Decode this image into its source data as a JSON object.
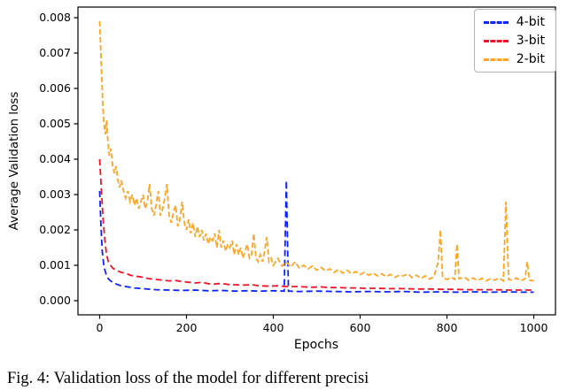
{
  "figure": {
    "caption": "Fig. 4: Validation loss of the model for different precisi"
  },
  "chart_data": {
    "type": "line",
    "title": "",
    "xlabel": "Epochs",
    "ylabel": "Average Validation loss",
    "xlim": [
      -50,
      1050
    ],
    "ylim": [
      -0.0004,
      0.0083
    ],
    "x_ticks": [
      0,
      200,
      400,
      600,
      800,
      1000
    ],
    "y_ticks": [
      0.0,
      0.001,
      0.002,
      0.003,
      0.004,
      0.005,
      0.006,
      0.007,
      0.008
    ],
    "grid": false,
    "legend_position": "upper right",
    "series": [
      {
        "name": "4-bit",
        "color": "#0b24fb",
        "dash": [
          7,
          4
        ],
        "points": [
          [
            0,
            0.0031
          ],
          [
            3,
            0.0021
          ],
          [
            6,
            0.0014
          ],
          [
            10,
            0.00095
          ],
          [
            15,
            0.00075
          ],
          [
            20,
            0.00062
          ],
          [
            25,
            0.00056
          ],
          [
            30,
            0.00052
          ],
          [
            40,
            0.00046
          ],
          [
            50,
            0.00042
          ],
          [
            60,
            0.0004
          ],
          [
            80,
            0.00036
          ],
          [
            100,
            0.00034
          ],
          [
            130,
            0.00031
          ],
          [
            160,
            0.0003
          ],
          [
            190,
            0.00029
          ],
          [
            220,
            0.0003
          ],
          [
            250,
            0.00028
          ],
          [
            280,
            0.00029
          ],
          [
            310,
            0.00027
          ],
          [
            340,
            0.00028
          ],
          [
            370,
            0.00027
          ],
          [
            400,
            0.00028
          ],
          [
            425,
            0.00027
          ],
          [
            430,
            0.0034
          ],
          [
            435,
            0.00027
          ],
          [
            460,
            0.00026
          ],
          [
            500,
            0.00027
          ],
          [
            540,
            0.00026
          ],
          [
            580,
            0.00025
          ],
          [
            620,
            0.00026
          ],
          [
            660,
            0.00025
          ],
          [
            700,
            0.00026
          ],
          [
            740,
            0.00024
          ],
          [
            780,
            0.00025
          ],
          [
            820,
            0.00024
          ],
          [
            860,
            0.00025
          ],
          [
            900,
            0.00024
          ],
          [
            940,
            0.00025
          ],
          [
            970,
            0.00024
          ],
          [
            1000,
            0.00024
          ]
        ]
      },
      {
        "name": "3-bit",
        "color": "#f0142a",
        "dash": [
          7,
          4
        ],
        "points": [
          [
            0,
            0.004
          ],
          [
            4,
            0.0031
          ],
          [
            8,
            0.0023
          ],
          [
            12,
            0.0017
          ],
          [
            16,
            0.0013
          ],
          [
            20,
            0.0011
          ],
          [
            25,
            0.001
          ],
          [
            30,
            0.00092
          ],
          [
            40,
            0.00085
          ],
          [
            50,
            0.0008
          ],
          [
            60,
            0.00078
          ],
          [
            70,
            0.00072
          ],
          [
            80,
            0.0007
          ],
          [
            90,
            0.00068
          ],
          [
            100,
            0.00066
          ],
          [
            115,
            0.00062
          ],
          [
            130,
            0.0006
          ],
          [
            145,
            0.00058
          ],
          [
            160,
            0.00056
          ],
          [
            175,
            0.00057
          ],
          [
            190,
            0.00054
          ],
          [
            205,
            0.00052
          ],
          [
            220,
            0.0005
          ],
          [
            235,
            0.00052
          ],
          [
            250,
            0.00048
          ],
          [
            265,
            0.00047
          ],
          [
            280,
            0.00049
          ],
          [
            295,
            0.00046
          ],
          [
            310,
            0.00045
          ],
          [
            330,
            0.00044
          ],
          [
            350,
            0.00045
          ],
          [
            370,
            0.00042
          ],
          [
            390,
            0.00041
          ],
          [
            410,
            0.00042
          ],
          [
            430,
            0.0004
          ],
          [
            450,
            0.0004
          ],
          [
            470,
            0.00039
          ],
          [
            490,
            0.00038
          ],
          [
            510,
            0.00039
          ],
          [
            530,
            0.00037
          ],
          [
            550,
            0.00037
          ],
          [
            570,
            0.00036
          ],
          [
            590,
            0.00036
          ],
          [
            610,
            0.00035
          ],
          [
            640,
            0.00035
          ],
          [
            670,
            0.00034
          ],
          [
            700,
            0.00034
          ],
          [
            730,
            0.00033
          ],
          [
            760,
            0.00033
          ],
          [
            790,
            0.00032
          ],
          [
            820,
            0.00032
          ],
          [
            850,
            0.00031
          ],
          [
            880,
            0.00031
          ],
          [
            910,
            0.00031
          ],
          [
            940,
            0.0003
          ],
          [
            970,
            0.0003
          ],
          [
            1000,
            0.0003
          ]
        ]
      },
      {
        "name": "2-bit",
        "color": "#ffa424",
        "dash": [
          6,
          3
        ],
        "points": [
          [
            0,
            0.0079
          ],
          [
            4,
            0.0066
          ],
          [
            7,
            0.0056
          ],
          [
            10,
            0.005
          ],
          [
            13,
            0.0047
          ],
          [
            16,
            0.0051
          ],
          [
            19,
            0.0045
          ],
          [
            22,
            0.0041
          ],
          [
            26,
            0.0043
          ],
          [
            30,
            0.0038
          ],
          [
            34,
            0.0036
          ],
          [
            38,
            0.0038
          ],
          [
            42,
            0.0034
          ],
          [
            46,
            0.0032
          ],
          [
            50,
            0.0034
          ],
          [
            55,
            0.0031
          ],
          [
            60,
            0.0029
          ],
          [
            65,
            0.0031
          ],
          [
            70,
            0.0028
          ],
          [
            75,
            0.003
          ],
          [
            80,
            0.0027
          ],
          [
            85,
            0.0029
          ],
          [
            90,
            0.0026
          ],
          [
            95,
            0.0028
          ],
          [
            100,
            0.003
          ],
          [
            105,
            0.0026
          ],
          [
            110,
            0.0028
          ],
          [
            115,
            0.0033
          ],
          [
            120,
            0.0026
          ],
          [
            125,
            0.0024
          ],
          [
            130,
            0.0027
          ],
          [
            135,
            0.0031
          ],
          [
            140,
            0.0024
          ],
          [
            145,
            0.0026
          ],
          [
            150,
            0.0029
          ],
          [
            155,
            0.0033
          ],
          [
            160,
            0.0024
          ],
          [
            165,
            0.0022
          ],
          [
            170,
            0.0025
          ],
          [
            175,
            0.0027
          ],
          [
            180,
            0.0021
          ],
          [
            185,
            0.0023
          ],
          [
            190,
            0.0028
          ],
          [
            195,
            0.0022
          ],
          [
            200,
            0.002
          ],
          [
            205,
            0.0023
          ],
          [
            210,
            0.0019
          ],
          [
            215,
            0.0022
          ],
          [
            220,
            0.0018
          ],
          [
            225,
            0.0021
          ],
          [
            230,
            0.0018
          ],
          [
            235,
            0.002
          ],
          [
            240,
            0.0017
          ],
          [
            245,
            0.0019
          ],
          [
            250,
            0.0016
          ],
          [
            255,
            0.0018
          ],
          [
            260,
            0.0017
          ],
          [
            265,
            0.0019
          ],
          [
            270,
            0.0015
          ],
          [
            275,
            0.002
          ],
          [
            280,
            0.0015
          ],
          [
            285,
            0.0017
          ],
          [
            290,
            0.0014
          ],
          [
            295,
            0.0016
          ],
          [
            300,
            0.0015
          ],
          [
            305,
            0.0017
          ],
          [
            310,
            0.0013
          ],
          [
            315,
            0.0016
          ],
          [
            320,
            0.0013
          ],
          [
            325,
            0.0015
          ],
          [
            330,
            0.0012
          ],
          [
            335,
            0.0014
          ],
          [
            340,
            0.0016
          ],
          [
            345,
            0.0012
          ],
          [
            350,
            0.0013
          ],
          [
            355,
            0.0019
          ],
          [
            360,
            0.0012
          ],
          [
            365,
            0.0011
          ],
          [
            370,
            0.0013
          ],
          [
            375,
            0.0011
          ],
          [
            380,
            0.0014
          ],
          [
            385,
            0.0018
          ],
          [
            390,
            0.0011
          ],
          [
            395,
            0.0012
          ],
          [
            400,
            0.001
          ],
          [
            410,
            0.0012
          ],
          [
            420,
            0.00098
          ],
          [
            430,
            0.0011
          ],
          [
            440,
            0.00095
          ],
          [
            450,
            0.0011
          ],
          [
            460,
            0.00092
          ],
          [
            470,
            0.001
          ],
          [
            480,
            0.0009
          ],
          [
            490,
            0.00098
          ],
          [
            500,
            0.00086
          ],
          [
            510,
            0.00094
          ],
          [
            520,
            0.00084
          ],
          [
            530,
            0.0009
          ],
          [
            540,
            0.0008
          ],
          [
            550,
            0.00088
          ],
          [
            560,
            0.00078
          ],
          [
            570,
            0.00086
          ],
          [
            580,
            0.00076
          ],
          [
            590,
            0.00082
          ],
          [
            600,
            0.00074
          ],
          [
            610,
            0.0008
          ],
          [
            620,
            0.00072
          ],
          [
            630,
            0.00078
          ],
          [
            640,
            0.0007
          ],
          [
            650,
            0.00076
          ],
          [
            660,
            0.00068
          ],
          [
            670,
            0.00074
          ],
          [
            680,
            0.00066
          ],
          [
            690,
            0.00072
          ],
          [
            700,
            0.0007
          ],
          [
            710,
            0.00076
          ],
          [
            720,
            0.00065
          ],
          [
            730,
            0.00072
          ],
          [
            740,
            0.00063
          ],
          [
            750,
            0.0007
          ],
          [
            760,
            0.00061
          ],
          [
            770,
            0.00068
          ],
          [
            780,
            0.0011
          ],
          [
            785,
            0.002
          ],
          [
            790,
            0.00066
          ],
          [
            800,
            0.0006
          ],
          [
            810,
            0.00066
          ],
          [
            818,
            0.0006
          ],
          [
            823,
            0.0016
          ],
          [
            828,
            0.00062
          ],
          [
            840,
            0.00066
          ],
          [
            850,
            0.00058
          ],
          [
            860,
            0.00064
          ],
          [
            870,
            0.00057
          ],
          [
            880,
            0.00063
          ],
          [
            890,
            0.00056
          ],
          [
            900,
            0.00062
          ],
          [
            910,
            0.00058
          ],
          [
            920,
            0.00064
          ],
          [
            930,
            0.00056
          ],
          [
            936,
            0.0028
          ],
          [
            942,
            0.0006
          ],
          [
            950,
            0.00058
          ],
          [
            960,
            0.00064
          ],
          [
            970,
            0.00056
          ],
          [
            980,
            0.00062
          ],
          [
            985,
            0.0011
          ],
          [
            990,
            0.00058
          ],
          [
            1000,
            0.00056
          ]
        ]
      }
    ]
  }
}
